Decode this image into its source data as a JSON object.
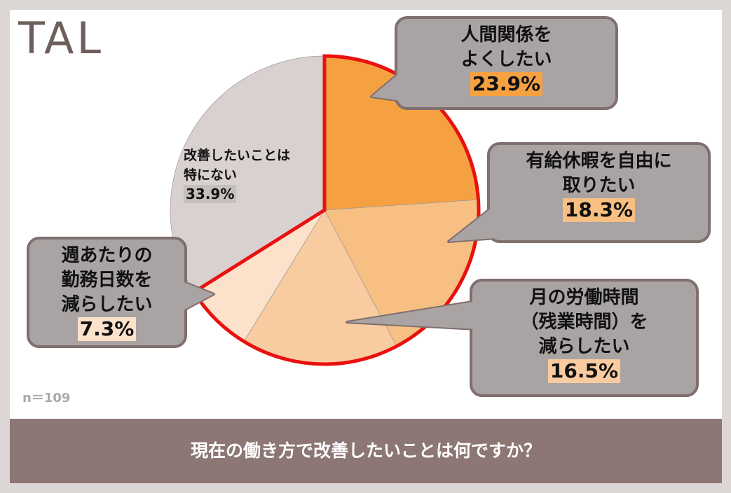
{
  "chart_data": {
    "type": "pie",
    "title": "現在の働き方で改善したいことは何ですか？",
    "note": "n＝109",
    "logo": "TAL",
    "categories": [
      "人間関係を\nよくしたい",
      "有給休暇を自由に\n取りたい",
      "月の労働時間\n（残業時間）を\n減らしたい",
      "週あたりの\n勤務日数を\n減らしたい",
      "改善したいことは\n特にない"
    ],
    "values": [
      23.9,
      18.3,
      16.5,
      7.3,
      33.9
    ],
    "value_labels": [
      "23.9%",
      "18.3%",
      "16.5%",
      "7.3%",
      "33.9%"
    ],
    "colors": [
      "#f5a142",
      "#f7bf82",
      "#f9cba0",
      "#fce2cb",
      "#d9d1d0"
    ]
  }
}
